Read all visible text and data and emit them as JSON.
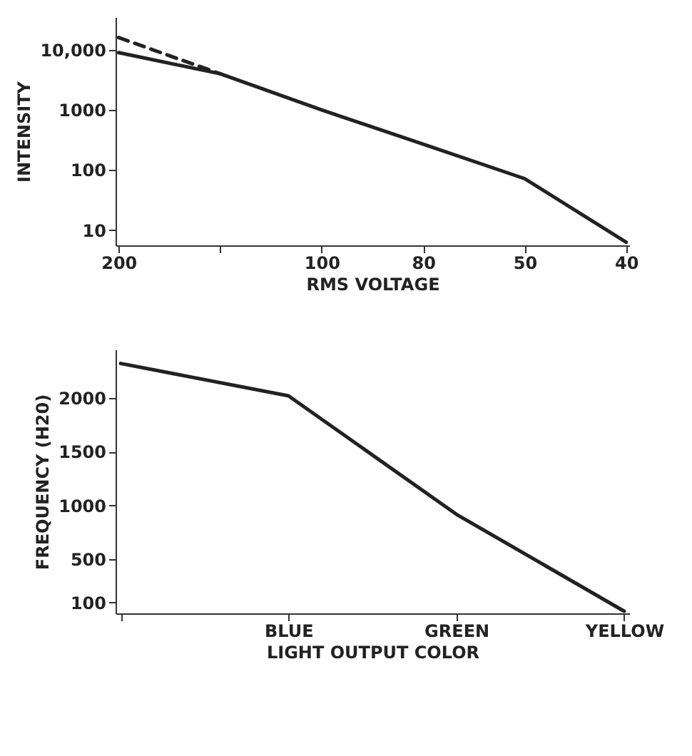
{
  "chart_data": [
    {
      "type": "line",
      "xlabel": "RMS VOLTAGE",
      "ylabel": "INTENSITY",
      "categories": [
        "200",
        null,
        "100",
        "80",
        "50",
        "40"
      ],
      "log": "y",
      "ylim": [
        5.6,
        35000
      ],
      "yticks": [
        10,
        100,
        1000,
        {
          "value": 10000,
          "label": "10,000"
        }
      ],
      "grid": false,
      "series": [
        {
          "color": "#222222",
          "values": [
            9000,
            4000,
            1000,
            270,
            72,
            6.3
          ]
        },
        {
          "color": "#222222",
          "line_style": "dashed",
          "values": [
            16000,
            4000,
            null,
            null,
            null,
            null
          ]
        }
      ]
    },
    {
      "type": "line",
      "xlabel": "LIGHT OUTPUT COLOR",
      "ylabel": "FREQUENCY (H20)",
      "categories": [
        null,
        "BLUE",
        "GREEN",
        "YELLOW"
      ],
      "ylim": [
        0,
        2450
      ],
      "yticks": [
        100,
        500,
        1000,
        1500,
        2000
      ],
      "grid": false,
      "series": [
        {
          "color": "#222222",
          "values": [
            2320,
            2020,
            920,
            20
          ]
        }
      ]
    }
  ]
}
